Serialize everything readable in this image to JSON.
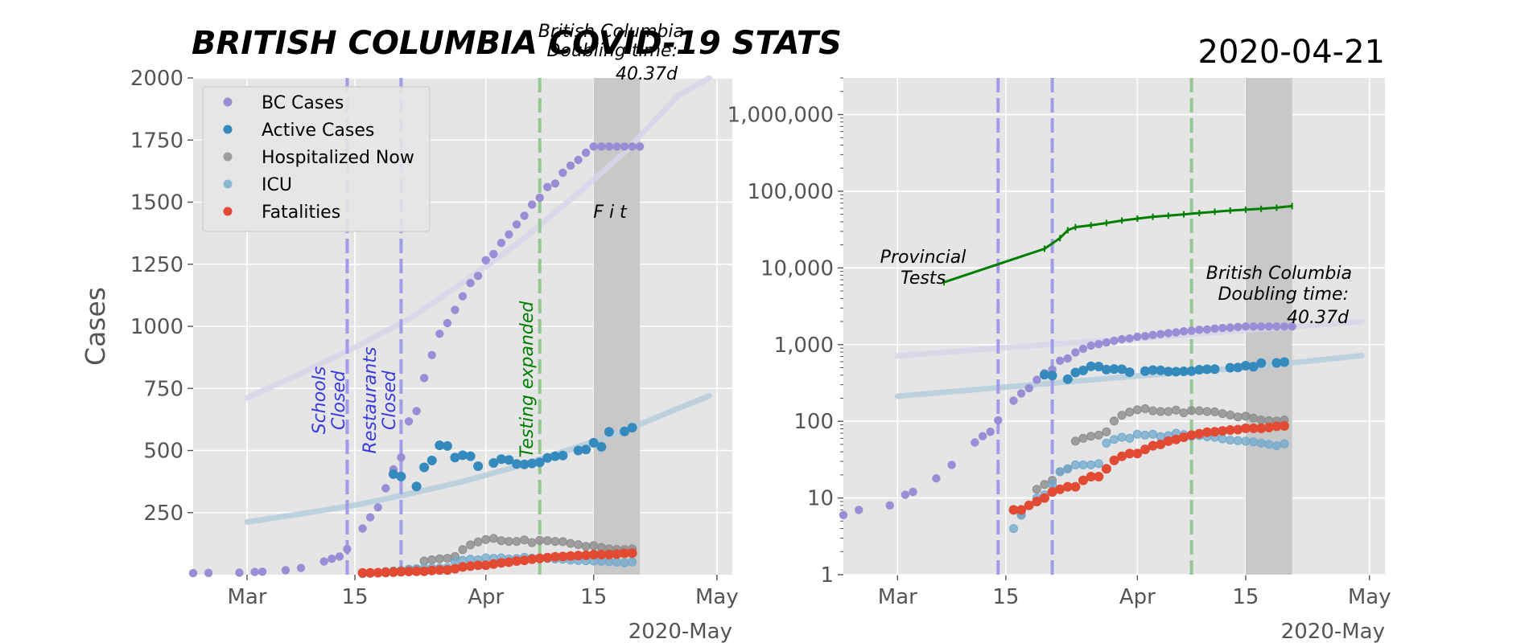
{
  "figure": {
    "title": "BRITISH COLUMBIA COVID-19 STATS",
    "date": "2020-04-21",
    "colors": {
      "bc_cases": "#988ED5",
      "active": "#348ABD",
      "hospitalized": "#8C8C8C",
      "icu": "#6FA8CC",
      "fatalities": "#E24A33",
      "tests": "#007F00",
      "fit_cases": "#D8D5EA",
      "fit_active": "#B5CEDC",
      "schools": "#A29BEA",
      "testing_expanded_line": "#96C896",
      "testing_expanded_text": "#008000",
      "shade": "#C8C8C8",
      "plot_bg": "#E5E5E5"
    }
  },
  "chart_data": [
    {
      "type": "scatter",
      "panel": "linear",
      "title": "",
      "xlabel": "",
      "ylabel": "Cases",
      "xlim": [
        "2020-02-23",
        "2020-05-03"
      ],
      "ylim": [
        0,
        2000
      ],
      "x_ticks": [
        "2020-03-01",
        "2020-03-15",
        "2020-04-01",
        "2020-04-15",
        "2020-05-01"
      ],
      "x_tick_labels": [
        "Mar",
        "15",
        "Apr",
        "15",
        "May"
      ],
      "x_offset_label": "2020-May",
      "y_ticks": [
        250,
        500,
        750,
        1000,
        1250,
        1500,
        1750,
        2000
      ],
      "y_tick_labels": [
        "250",
        "500",
        "750",
        "1000",
        "1250",
        "1500",
        "1750",
        "2000"
      ],
      "grid": true,
      "legend": "top-left",
      "legend_entries": [
        "BC Cases",
        "Active Cases",
        "Hospitalized Now",
        "ICU",
        "Fatalities"
      ],
      "vlines": [
        {
          "x": "2020-03-14",
          "label": "Schools\nClosed",
          "style": "schools"
        },
        {
          "x": "2020-03-21",
          "label": "Restaurants\nClosed",
          "style": "schools"
        },
        {
          "x": "2020-04-08",
          "label": "Testing expanded",
          "style": "testing"
        }
      ],
      "shade": {
        "from": "2020-04-15",
        "to": "2020-04-21",
        "label": "F i t"
      },
      "annotation": "British Columbia\nDoubling time:\n40.37d",
      "fit_curves": [
        {
          "key": "fit_cases",
          "x": [
            "2020-03-01",
            "2020-03-08",
            "2020-03-15",
            "2020-03-22",
            "2020-03-29",
            "2020-04-05",
            "2020-04-12",
            "2020-04-19",
            "2020-04-26",
            "2020-04-30"
          ],
          "values": [
            712,
            810,
            915,
            1030,
            1175,
            1330,
            1510,
            1700,
            1930,
            2000
          ]
        },
        {
          "key": "fit_active",
          "x": [
            "2020-03-01",
            "2020-03-08",
            "2020-03-15",
            "2020-03-22",
            "2020-03-29",
            "2020-04-05",
            "2020-04-12",
            "2020-04-19",
            "2020-04-26",
            "2020-04-30"
          ],
          "values": [
            212,
            245,
            280,
            325,
            375,
            435,
            505,
            580,
            670,
            720
          ]
        }
      ],
      "series": [
        {
          "name": "BC Cases",
          "key": "bc_cases",
          "x": [
            "2020-02-23",
            "2020-02-25",
            "2020-02-29",
            "2020-03-02",
            "2020-03-03",
            "2020-03-06",
            "2020-03-08",
            "2020-03-11",
            "2020-03-12",
            "2020-03-13",
            "2020-03-14",
            "2020-03-16",
            "2020-03-17",
            "2020-03-18",
            "2020-03-19",
            "2020-03-20",
            "2020-03-21",
            "2020-03-22",
            "2020-03-23",
            "2020-03-24",
            "2020-03-25",
            "2020-03-26",
            "2020-03-27",
            "2020-03-28",
            "2020-03-29",
            "2020-03-30",
            "2020-03-31",
            "2020-04-01",
            "2020-04-02",
            "2020-04-03",
            "2020-04-04",
            "2020-04-05",
            "2020-04-06",
            "2020-04-07",
            "2020-04-08",
            "2020-04-09",
            "2020-04-10",
            "2020-04-11",
            "2020-04-12",
            "2020-04-13",
            "2020-04-14",
            "2020-04-15",
            "2020-04-16",
            "2020-04-17",
            "2020-04-18",
            "2020-04-19",
            "2020-04-20",
            "2020-04-21"
          ],
          "values": [
            6,
            7,
            8,
            11,
            12,
            18,
            27,
            53,
            64,
            73,
            103,
            186,
            231,
            271,
            348,
            424,
            472,
            617,
            659,
            792,
            884,
            970,
            1013,
            1066,
            1121,
            1174,
            1203,
            1266,
            1291,
            1336,
            1370,
            1410,
            1445,
            1490,
            1518,
            1561,
            1575,
            1618,
            1647,
            1670,
            1699,
            1724,
            1724,
            1724,
            1724,
            1724,
            1724,
            1724
          ]
        },
        {
          "name": "Active Cases",
          "key": "active",
          "x": [
            "2020-03-20",
            "2020-03-21",
            "2020-03-23",
            "2020-03-24",
            "2020-03-25",
            "2020-03-26",
            "2020-03-27",
            "2020-03-28",
            "2020-03-29",
            "2020-03-30",
            "2020-03-31",
            "2020-04-02",
            "2020-04-03",
            "2020-04-04",
            "2020-04-05",
            "2020-04-06",
            "2020-04-07",
            "2020-04-08",
            "2020-04-09",
            "2020-04-10",
            "2020-04-11",
            "2020-04-13",
            "2020-04-14",
            "2020-04-15",
            "2020-04-16",
            "2020-04-17",
            "2020-04-19",
            "2020-04-20"
          ],
          "values": [
            405,
            395,
            355,
            432,
            460,
            521,
            518,
            472,
            481,
            477,
            437,
            450,
            465,
            462,
            446,
            444,
            448,
            452,
            470,
            477,
            480,
            500,
            504,
            531,
            515,
            575,
            577,
            592
          ]
        },
        {
          "name": "Hospitalized Now",
          "key": "hospitalized",
          "x": [
            "2020-03-17",
            "2020-03-18",
            "2020-03-19",
            "2020-03-20",
            "2020-03-21",
            "2020-03-22",
            "2020-03-23",
            "2020-03-24",
            "2020-03-25",
            "2020-03-26",
            "2020-03-27",
            "2020-03-28",
            "2020-03-29",
            "2020-03-30",
            "2020-03-31",
            "2020-04-01",
            "2020-04-02",
            "2020-04-03",
            "2020-04-04",
            "2020-04-05",
            "2020-04-06",
            "2020-04-07",
            "2020-04-08",
            "2020-04-09",
            "2020-04-10",
            "2020-04-11",
            "2020-04-12",
            "2020-04-13",
            "2020-04-14",
            "2020-04-15",
            "2020-04-16",
            "2020-04-17",
            "2020-04-18",
            "2020-04-19",
            "2020-04-20"
          ],
          "values": [
            6,
            8,
            13,
            15,
            17,
            22,
            24,
            55,
            60,
            64,
            66,
            73,
            101,
            120,
            132,
            141,
            146,
            137,
            134,
            134,
            140,
            129,
            138,
            137,
            134,
            133,
            126,
            121,
            114,
            117,
            110,
            104,
            102,
            101,
            104
          ]
        },
        {
          "name": "ICU",
          "key": "icu",
          "x": [
            "2020-03-16",
            "2020-03-17",
            "2020-03-18",
            "2020-03-19",
            "2020-03-20",
            "2020-03-21",
            "2020-03-22",
            "2020-03-23",
            "2020-03-24",
            "2020-03-25",
            "2020-03-26",
            "2020-03-27",
            "2020-03-28",
            "2020-03-29",
            "2020-03-30",
            "2020-03-31",
            "2020-04-01",
            "2020-04-02",
            "2020-04-03",
            "2020-04-04",
            "2020-04-05",
            "2020-04-06",
            "2020-04-07",
            "2020-04-08",
            "2020-04-09",
            "2020-04-10",
            "2020-04-11",
            "2020-04-12",
            "2020-04-13",
            "2020-04-14",
            "2020-04-15",
            "2020-04-16",
            "2020-04-17",
            "2020-04-18",
            "2020-04-19",
            "2020-04-20"
          ],
          "values": [
            4,
            6,
            8,
            10,
            11,
            15,
            22,
            24,
            27,
            27,
            27,
            28,
            52,
            58,
            62,
            60,
            68,
            66,
            68,
            63,
            65,
            70,
            67,
            64,
            65,
            63,
            62,
            59,
            57,
            56,
            55,
            54,
            52,
            50,
            48,
            51
          ]
        },
        {
          "name": "Fatalities",
          "key": "fatalities",
          "x": [
            "2020-03-16",
            "2020-03-17",
            "2020-03-18",
            "2020-03-19",
            "2020-03-20",
            "2020-03-21",
            "2020-03-22",
            "2020-03-23",
            "2020-03-24",
            "2020-03-25",
            "2020-03-26",
            "2020-03-27",
            "2020-03-28",
            "2020-03-29",
            "2020-03-30",
            "2020-03-31",
            "2020-04-01",
            "2020-04-02",
            "2020-04-03",
            "2020-04-04",
            "2020-04-05",
            "2020-04-06",
            "2020-04-07",
            "2020-04-08",
            "2020-04-09",
            "2020-04-10",
            "2020-04-11",
            "2020-04-12",
            "2020-04-13",
            "2020-04-14",
            "2020-04-15",
            "2020-04-16",
            "2020-04-17",
            "2020-04-18",
            "2020-04-19",
            "2020-04-20"
          ],
          "values": [
            7,
            7,
            8,
            9,
            10,
            12,
            13,
            14,
            14,
            17,
            19,
            19,
            24,
            31,
            35,
            38,
            38,
            43,
            48,
            50,
            55,
            58,
            62,
            66,
            69,
            72,
            73,
            75,
            77,
            78,
            81,
            81,
            81,
            83,
            86,
            87
          ]
        }
      ]
    },
    {
      "type": "line",
      "panel": "log",
      "title": "",
      "xlabel": "",
      "ylabel": "",
      "xlim": [
        "2020-02-23",
        "2020-05-03"
      ],
      "ylim": [
        1,
        3000000
      ],
      "yscale": "log",
      "x_ticks": [
        "2020-03-01",
        "2020-03-15",
        "2020-04-01",
        "2020-04-15",
        "2020-05-01"
      ],
      "x_tick_labels": [
        "Mar",
        "15",
        "Apr",
        "15",
        "May"
      ],
      "x_offset_label": "2020-May",
      "y_ticks": [
        1,
        10,
        100,
        1000,
        10000,
        100000,
        1000000
      ],
      "y_tick_labels": [
        "1",
        "10",
        "100",
        "1,000",
        "10,000",
        "100,000",
        "1,000,000"
      ],
      "grid": true,
      "vlines": [
        {
          "x": "2020-03-14",
          "style": "schools"
        },
        {
          "x": "2020-03-21",
          "style": "schools"
        },
        {
          "x": "2020-04-08",
          "style": "testing"
        }
      ],
      "shade": {
        "from": "2020-04-15",
        "to": "2020-04-21"
      },
      "annotations": [
        {
          "text": "Provincial\nTests"
        },
        {
          "text": "British Columbia\nDoubling time:\n40.37d"
        }
      ],
      "tests": {
        "x": [
          "2020-03-07",
          "2020-03-20",
          "2020-03-22",
          "2020-03-23",
          "2020-03-24",
          "2020-03-26",
          "2020-03-28",
          "2020-03-30",
          "2020-04-01",
          "2020-04-03",
          "2020-04-05",
          "2020-04-07",
          "2020-04-09",
          "2020-04-11",
          "2020-04-13",
          "2020-04-15",
          "2020-04-17",
          "2020-04-19",
          "2020-04-21"
        ],
        "values": [
          6500,
          17800,
          24500,
          31000,
          34000,
          36000,
          38500,
          41500,
          44000,
          46500,
          48000,
          50000,
          52000,
          54000,
          56000,
          57500,
          59000,
          61000,
          64000
        ]
      },
      "fit_curves": [
        {
          "key": "fit_cases",
          "x": [
            "2020-03-01",
            "2020-03-15",
            "2020-04-01",
            "2020-04-15",
            "2020-04-30"
          ],
          "values": [
            712,
            915,
            1210,
            1540,
            2000
          ]
        },
        {
          "key": "fit_active",
          "x": [
            "2020-03-01",
            "2020-03-15",
            "2020-04-01",
            "2020-04-15",
            "2020-04-30"
          ],
          "values": [
            212,
            280,
            390,
            500,
            720
          ]
        }
      ],
      "series_ref": "same series as the linear panel"
    }
  ]
}
